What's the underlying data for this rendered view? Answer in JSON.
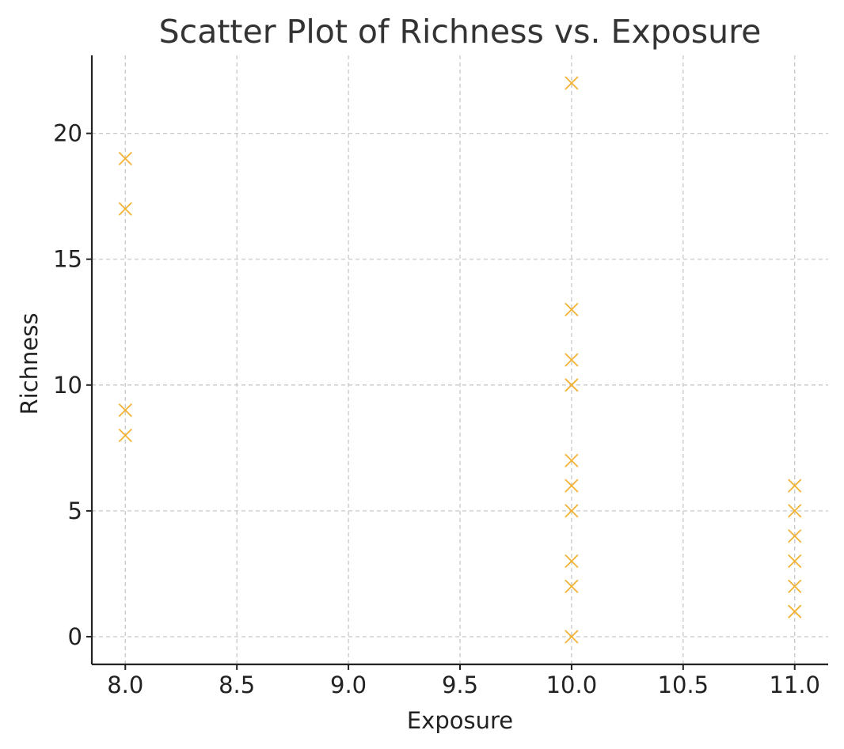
{
  "chart_data": {
    "type": "scatter",
    "title": "Scatter Plot of Richness vs. Exposure",
    "xlabel": "Exposure",
    "ylabel": "Richness",
    "xlim": [
      7.85,
      11.15
    ],
    "ylim": [
      -1.1,
      23.1
    ],
    "xticks": [
      8.0,
      8.5,
      9.0,
      9.5,
      10.0,
      10.5,
      11.0
    ],
    "xtick_labels": [
      "8.0",
      "8.5",
      "9.0",
      "9.5",
      "10.0",
      "10.5",
      "11.0"
    ],
    "yticks": [
      0,
      5,
      10,
      15,
      20
    ],
    "ytick_labels": [
      "0",
      "5",
      "10",
      "15",
      "20"
    ],
    "grid": true,
    "marker": "x",
    "color": "#f2b233",
    "points": [
      {
        "x": 8,
        "y": 19
      },
      {
        "x": 8,
        "y": 17
      },
      {
        "x": 8,
        "y": 9
      },
      {
        "x": 8,
        "y": 8
      },
      {
        "x": 10,
        "y": 22
      },
      {
        "x": 10,
        "y": 13
      },
      {
        "x": 10,
        "y": 11
      },
      {
        "x": 10,
        "y": 10
      },
      {
        "x": 10,
        "y": 7
      },
      {
        "x": 10,
        "y": 6
      },
      {
        "x": 10,
        "y": 5
      },
      {
        "x": 10,
        "y": 3
      },
      {
        "x": 10,
        "y": 2
      },
      {
        "x": 10,
        "y": 0
      },
      {
        "x": 11,
        "y": 6
      },
      {
        "x": 11,
        "y": 5
      },
      {
        "x": 11,
        "y": 4
      },
      {
        "x": 11,
        "y": 3
      },
      {
        "x": 11,
        "y": 2
      },
      {
        "x": 11,
        "y": 1
      }
    ]
  }
}
